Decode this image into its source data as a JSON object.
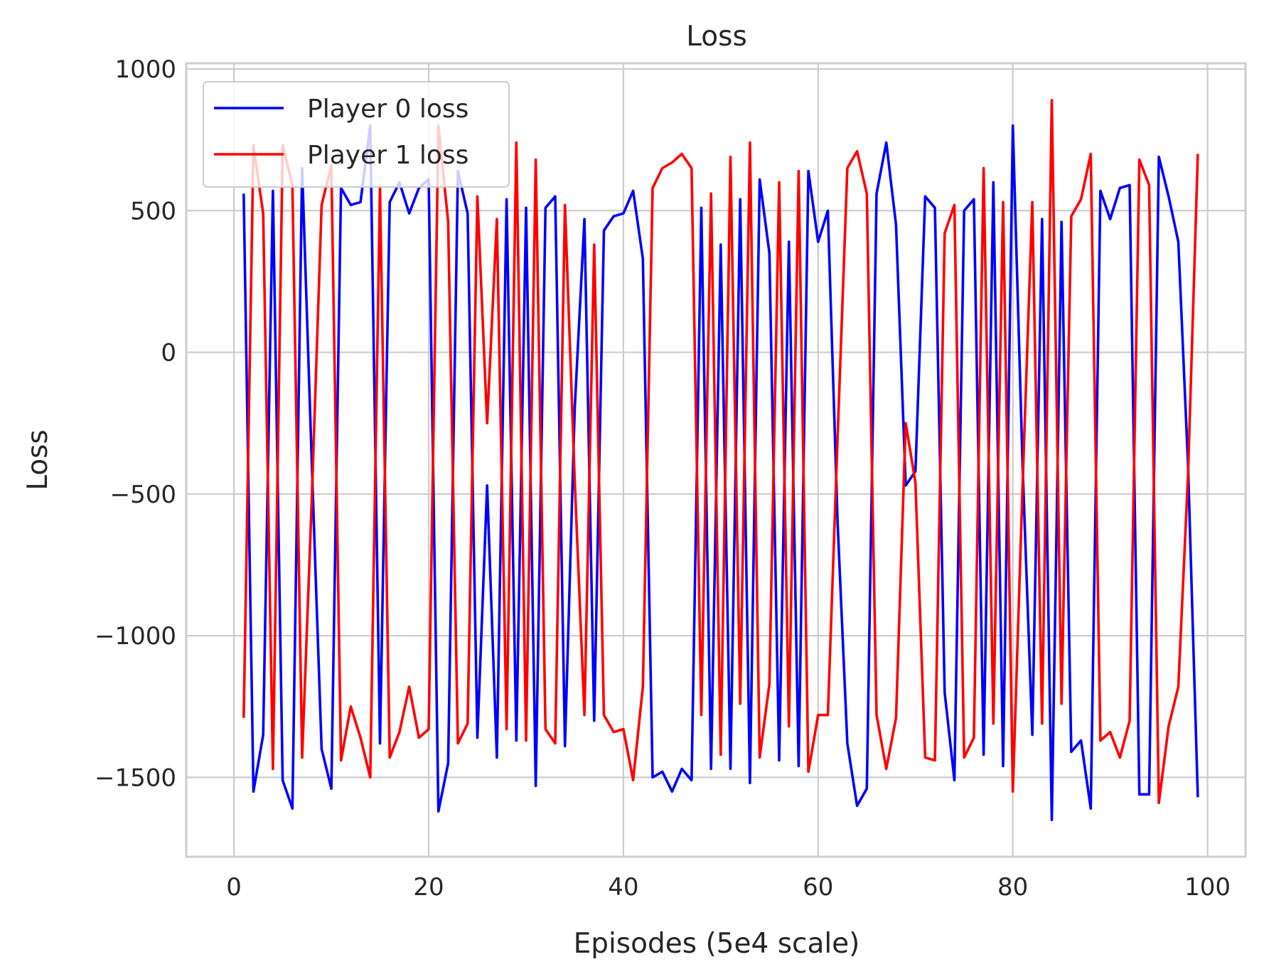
{
  "chart_data": {
    "type": "line",
    "title": "Loss",
    "xlabel": "Episodes (5e4 scale)",
    "ylabel": "Loss",
    "xlim": [
      -4.9,
      103.9
    ],
    "ylim": [
      -1780,
      1020
    ],
    "xticks": [
      0,
      20,
      40,
      60,
      80,
      100
    ],
    "yticks": [
      1000,
      500,
      0,
      -500,
      -1000,
      -1500
    ],
    "xtick_labels": [
      "0",
      "20",
      "40",
      "60",
      "80",
      "100"
    ],
    "ytick_labels": [
      "1000",
      "500",
      "0",
      "−500",
      "−1000",
      "−1500"
    ],
    "grid": true,
    "legend_position": "upper left",
    "x": [
      1,
      2,
      3,
      4,
      5,
      6,
      7,
      8,
      9,
      10,
      11,
      12,
      13,
      14,
      15,
      16,
      17,
      18,
      19,
      20,
      21,
      22,
      23,
      24,
      25,
      26,
      27,
      28,
      29,
      30,
      31,
      32,
      33,
      34,
      35,
      36,
      37,
      38,
      39,
      40,
      41,
      42,
      43,
      44,
      45,
      46,
      47,
      48,
      49,
      50,
      51,
      52,
      53,
      54,
      55,
      56,
      57,
      58,
      59,
      60,
      61,
      62,
      63,
      64,
      65,
      66,
      67,
      68,
      69,
      70,
      71,
      72,
      73,
      74,
      75,
      76,
      77,
      78,
      79,
      80,
      81,
      82,
      83,
      84,
      85,
      86,
      87,
      88,
      89,
      90,
      91,
      92,
      93,
      94,
      95,
      96,
      97,
      98,
      99
    ],
    "series": [
      {
        "name": "Player 0 loss",
        "color": "#0000ff",
        "values": [
          560,
          -1550,
          -1350,
          570,
          -1510,
          -1610,
          650,
          -400,
          -1400,
          -1540,
          580,
          520,
          530,
          800,
          -1380,
          530,
          600,
          490,
          580,
          610,
          -1620,
          -1450,
          640,
          490,
          -1360,
          -470,
          -1430,
          540,
          -1370,
          510,
          -1530,
          510,
          550,
          -1390,
          -200,
          470,
          -1300,
          430,
          480,
          490,
          570,
          330,
          -1500,
          -1480,
          -1550,
          -1470,
          -1510,
          510,
          -1470,
          380,
          -1470,
          540,
          -1520,
          610,
          350,
          -1440,
          390,
          -1460,
          640,
          390,
          500,
          -600,
          -1380,
          -1600,
          -1540,
          560,
          740,
          450,
          -470,
          -420,
          550,
          510,
          -1200,
          -1510,
          500,
          540,
          -1420,
          600,
          -1460,
          800,
          -400,
          -1350,
          470,
          -1650,
          460,
          -1410,
          -1370,
          -1610,
          570,
          470,
          580,
          590,
          -1560,
          -1560,
          690,
          550,
          390,
          -400,
          -1570
        ]
      },
      {
        "name": "Player 1 loss",
        "color": "#ff0000",
        "values": [
          -1290,
          730,
          490,
          -1470,
          730,
          590,
          -1430,
          -510,
          520,
          660,
          -1440,
          -1250,
          -1360,
          -1500,
          580,
          -1430,
          -1340,
          -1180,
          -1360,
          -1330,
          800,
          460,
          -1380,
          -1310,
          550,
          -250,
          470,
          -1330,
          740,
          -1370,
          680,
          -1330,
          -1380,
          520,
          -450,
          -1280,
          380,
          -1280,
          -1340,
          -1330,
          -1510,
          -1180,
          580,
          650,
          670,
          700,
          650,
          -1280,
          560,
          -1420,
          690,
          -1240,
          740,
          -1430,
          -1170,
          600,
          -1320,
          640,
          -1480,
          -1280,
          -1280,
          -300,
          650,
          710,
          560,
          -1280,
          -1470,
          -1290,
          -250,
          -460,
          -1430,
          -1440,
          420,
          520,
          -1430,
          -1360,
          650,
          -1310,
          530,
          -1550,
          -470,
          530,
          -1310,
          890,
          -1240,
          480,
          540,
          700,
          -1370,
          -1340,
          -1430,
          -1300,
          680,
          590,
          -1590,
          -1320,
          -1180,
          -430,
          700
        ]
      }
    ]
  }
}
